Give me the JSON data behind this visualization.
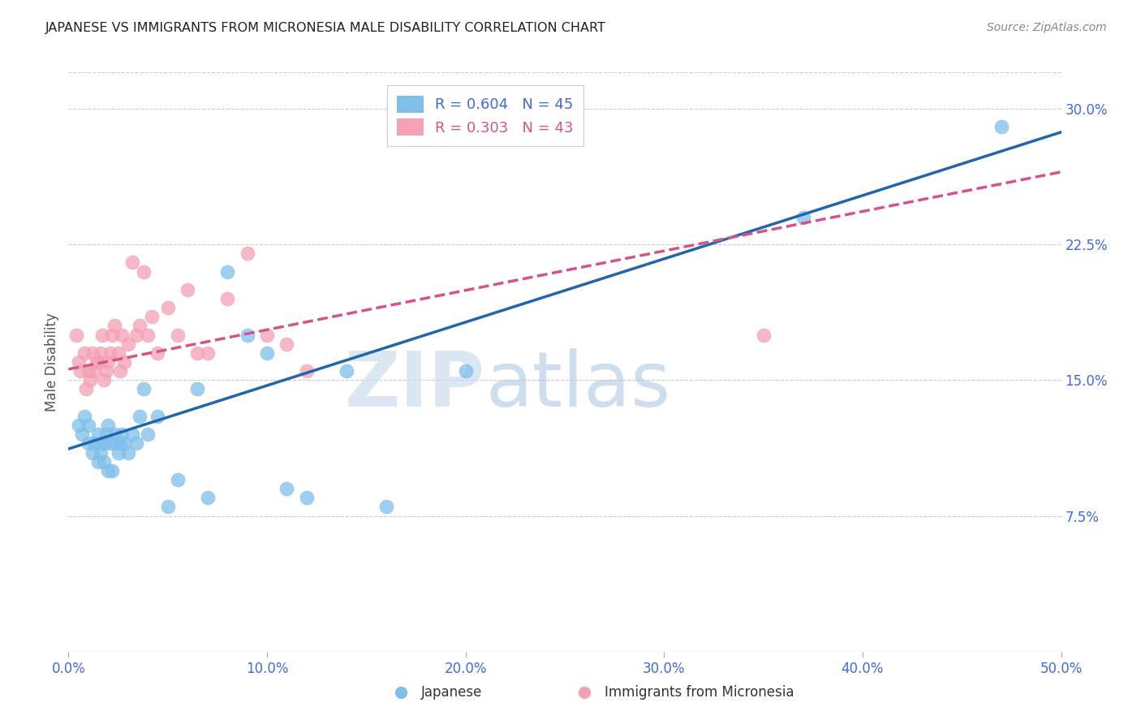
{
  "title": "JAPANESE VS IMMIGRANTS FROM MICRONESIA MALE DISABILITY CORRELATION CHART",
  "source": "Source: ZipAtlas.com",
  "xlabel_japanese": "Japanese",
  "xlabel_micronesia": "Immigrants from Micronesia",
  "ylabel": "Male Disability",
  "xlim": [
    0.0,
    0.5
  ],
  "ylim": [
    0.0,
    0.32
  ],
  "xticks": [
    0.0,
    0.1,
    0.2,
    0.3,
    0.4,
    0.5
  ],
  "yticks": [
    0.075,
    0.15,
    0.225,
    0.3
  ],
  "ytick_labels": [
    "7.5%",
    "15.0%",
    "22.5%",
    "30.0%"
  ],
  "xtick_labels": [
    "0.0%",
    "10.0%",
    "20.0%",
    "30.0%",
    "40.0%",
    "50.0%"
  ],
  "legend_r_blue": "R = 0.604",
  "legend_n_blue": "N = 45",
  "legend_r_pink": "R = 0.303",
  "legend_n_pink": "N = 43",
  "color_blue": "#7fbfea",
  "color_pink": "#f4a0b5",
  "line_blue": "#2166ac",
  "line_pink": "#d6538a",
  "axis_label_color": "#4169E1",
  "title_color": "#222222",
  "watermark_color": "#c8d8ee",
  "japanese_x": [
    0.005,
    0.007,
    0.008,
    0.01,
    0.01,
    0.012,
    0.013,
    0.015,
    0.015,
    0.016,
    0.017,
    0.018,
    0.018,
    0.019,
    0.02,
    0.02,
    0.021,
    0.022,
    0.023,
    0.024,
    0.025,
    0.026,
    0.027,
    0.028,
    0.03,
    0.032,
    0.034,
    0.036,
    0.038,
    0.04,
    0.045,
    0.05,
    0.055,
    0.065,
    0.07,
    0.08,
    0.09,
    0.1,
    0.11,
    0.12,
    0.14,
    0.16,
    0.2,
    0.37,
    0.47
  ],
  "japanese_y": [
    0.125,
    0.12,
    0.13,
    0.115,
    0.125,
    0.11,
    0.115,
    0.105,
    0.12,
    0.11,
    0.115,
    0.105,
    0.115,
    0.12,
    0.1,
    0.125,
    0.115,
    0.1,
    0.12,
    0.115,
    0.11,
    0.115,
    0.12,
    0.115,
    0.11,
    0.12,
    0.115,
    0.13,
    0.145,
    0.12,
    0.13,
    0.08,
    0.095,
    0.145,
    0.085,
    0.21,
    0.175,
    0.165,
    0.09,
    0.085,
    0.155,
    0.08,
    0.155,
    0.24,
    0.29
  ],
  "micronesia_x": [
    0.004,
    0.005,
    0.006,
    0.008,
    0.009,
    0.01,
    0.011,
    0.012,
    0.013,
    0.014,
    0.015,
    0.016,
    0.017,
    0.018,
    0.019,
    0.02,
    0.021,
    0.022,
    0.023,
    0.025,
    0.026,
    0.027,
    0.028,
    0.03,
    0.032,
    0.034,
    0.036,
    0.038,
    0.04,
    0.042,
    0.045,
    0.05,
    0.055,
    0.06,
    0.065,
    0.07,
    0.08,
    0.09,
    0.1,
    0.11,
    0.12,
    0.2,
    0.35
  ],
  "micronesia_y": [
    0.175,
    0.16,
    0.155,
    0.165,
    0.145,
    0.155,
    0.15,
    0.165,
    0.155,
    0.16,
    0.16,
    0.165,
    0.175,
    0.15,
    0.155,
    0.16,
    0.165,
    0.175,
    0.18,
    0.165,
    0.155,
    0.175,
    0.16,
    0.17,
    0.215,
    0.175,
    0.18,
    0.21,
    0.175,
    0.185,
    0.165,
    0.19,
    0.175,
    0.2,
    0.165,
    0.165,
    0.195,
    0.22,
    0.175,
    0.17,
    0.155,
    0.29,
    0.175
  ]
}
